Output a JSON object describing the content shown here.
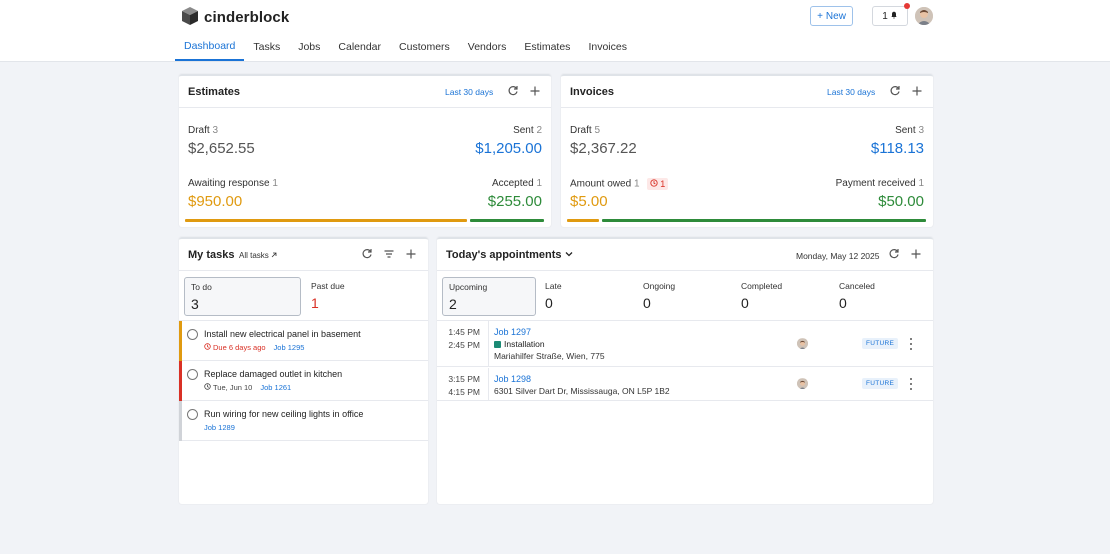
{
  "app": {
    "name": "cinderblock"
  },
  "header": {
    "new_label": "New",
    "notification_count": "1"
  },
  "nav": {
    "tabs": [
      "Dashboard",
      "Tasks",
      "Jobs",
      "Calendar",
      "Customers",
      "Vendors",
      "Estimates",
      "Invoices"
    ],
    "active": "Dashboard"
  },
  "estimates": {
    "title": "Estimates",
    "range": "Last 30 days",
    "draft": {
      "label": "Draft",
      "count": "3",
      "value": "$2,652.55"
    },
    "sent": {
      "label": "Sent",
      "count": "2",
      "value": "$1,205.00"
    },
    "awaiting": {
      "label": "Awaiting response",
      "count": "1",
      "value": "$950.00"
    },
    "accepted": {
      "label": "Accepted",
      "count": "1",
      "value": "$255.00"
    }
  },
  "invoices": {
    "title": "Invoices",
    "range": "Last 30 days",
    "draft": {
      "label": "Draft",
      "count": "5",
      "value": "$2,367.22"
    },
    "sent": {
      "label": "Sent",
      "count": "3",
      "value": "$118.13"
    },
    "owed": {
      "label": "Amount owed",
      "count": "1",
      "overdue": "1",
      "value": "$5.00"
    },
    "received": {
      "label": "Payment received",
      "count": "1",
      "value": "$50.00"
    }
  },
  "tasks": {
    "title": "My tasks",
    "all_link": "All tasks",
    "tabs": [
      {
        "label": "To do",
        "count": "3"
      },
      {
        "label": "Past due",
        "count": "1"
      }
    ],
    "items": [
      {
        "title": "Install new electrical panel in basement",
        "due": "Due 6 days ago",
        "job": "Job 1295"
      },
      {
        "title": "Replace damaged outlet in kitchen",
        "date": "Tue, Jun 10",
        "job": "Job 1261"
      },
      {
        "title": "Run wiring for new ceiling lights in office",
        "job": "Job 1289"
      }
    ]
  },
  "appointments": {
    "title": "Today's appointments",
    "date": "Monday, May 12 2025",
    "tabs": [
      {
        "label": "Upcoming",
        "count": "2"
      },
      {
        "label": "Late",
        "count": "0"
      },
      {
        "label": "Ongoing",
        "count": "0"
      },
      {
        "label": "Completed",
        "count": "0"
      },
      {
        "label": "Canceled",
        "count": "0"
      }
    ],
    "items": [
      {
        "start": "1:45 PM",
        "end": "2:45 PM",
        "job": "Job 1297",
        "type": "Installation",
        "address": "Mariahilfer Straße, Wien, 775",
        "status": "FUTURE"
      },
      {
        "start": "3:15 PM",
        "end": "4:15 PM",
        "job": "Job 1298",
        "address": "6301 Silver Dart Dr, Mississauga, ON L5P 1B2",
        "status": "FUTURE"
      }
    ]
  },
  "colors": {
    "accent": "#1a73d6",
    "orange": "#e09a10",
    "green": "#2e8b3a",
    "red": "#d93025",
    "teal": "#1b8a74"
  }
}
